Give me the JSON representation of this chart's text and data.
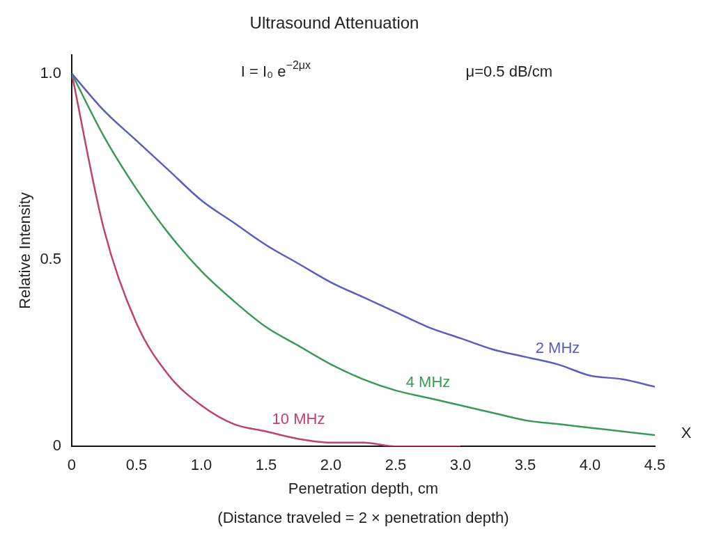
{
  "chart_data": {
    "type": "line",
    "title": "Ultrasound Attenuation",
    "xlabel": "Penetration depth, cm",
    "ylabel": "Relative Intensity",
    "x": [
      0,
      0.25,
      0.5,
      0.75,
      1,
      1.25,
      1.5,
      1.75,
      2,
      2.25,
      2.5,
      2.75,
      3,
      3.25,
      3.5,
      3.75,
      4,
      4.25,
      4.5
    ],
    "series": [
      {
        "name": "2 MHz",
        "color": "#5a5cc0",
        "values": [
          1,
          0.9,
          0.82,
          0.74,
          0.66,
          0.6,
          0.54,
          0.49,
          0.44,
          0.4,
          0.36,
          0.32,
          0.29,
          0.26,
          0.24,
          0.22,
          0.19,
          0.18,
          0.16
        ]
      },
      {
        "name": "4 MHz",
        "color": "#3a9a55",
        "values": [
          1,
          0.83,
          0.69,
          0.57,
          0.47,
          0.39,
          0.32,
          0.27,
          0.22,
          0.18,
          0.15,
          0.13,
          0.11,
          0.09,
          0.07,
          0.06,
          0.05,
          0.04,
          0.03
        ]
      },
      {
        "name": "10 MHz",
        "color": "#c0406e",
        "values": [
          1,
          0.58,
          0.33,
          0.19,
          0.11,
          0.06,
          0.04,
          0.02,
          0.01,
          0.01,
          0,
          0,
          0,
          null,
          null,
          null,
          null,
          null,
          null
        ]
      }
    ],
    "xlim": [
      0,
      4.5
    ],
    "xticks": [
      0,
      0.5,
      {
        "value": 1,
        "label": "1.0"
      },
      1.5,
      {
        "value": 2,
        "label": "2.0"
      },
      2.5,
      {
        "value": 3,
        "label": "3.0"
      },
      3.5,
      {
        "value": 4,
        "label": "4.0"
      },
      4.5
    ],
    "ylim": [
      0,
      1.05
    ],
    "yticks": [
      0,
      0.5,
      {
        "value": 1,
        "label": "1.0"
      }
    ],
    "grid": false,
    "legend": false,
    "marker": "none",
    "line_style": "solid",
    "annotations": [
      "I = I₀ e$^{−2μx}$",
      "μ=0.5 dB/cm",
      "(Distance traveled = 2 × penetration depth)",
      "X"
    ]
  }
}
